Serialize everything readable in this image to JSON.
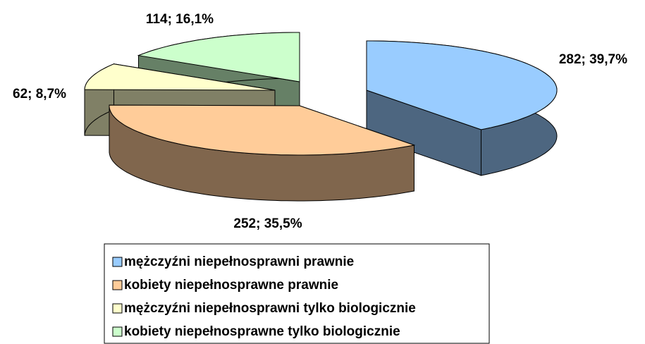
{
  "chart_data": {
    "type": "pie3d",
    "categories": [
      "mężczyźni niepełnosprawni prawnie",
      "kobiety niepełnosprawne prawnie",
      "mężczyźni niepełnosprawni tylko biologicznie",
      "kobiety niepełnosprawne tylko biologicznie"
    ],
    "values": [
      282,
      252,
      62,
      114
    ],
    "value_labels": [
      "282; 39,7%",
      "252; 35,5%",
      "62; 8,7%",
      "114; 16,1%"
    ],
    "colors": [
      "#99ccff",
      "#ffcc99",
      "#ffffcc",
      "#ccffcc"
    ],
    "legend": "bottom"
  }
}
